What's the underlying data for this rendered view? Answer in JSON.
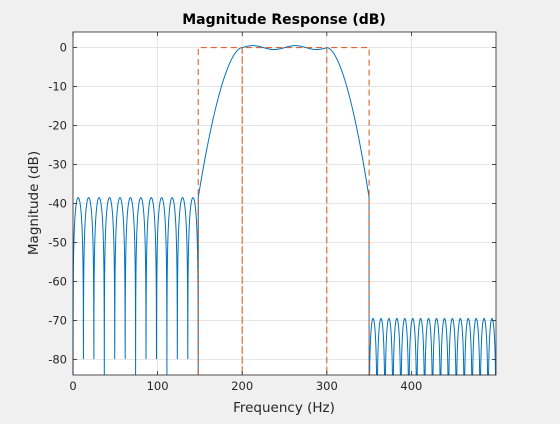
{
  "chart_data": {
    "type": "line",
    "title": "Magnitude Response (dB)",
    "xlabel": "Frequency (Hz)",
    "ylabel": "Magnitude (dB)",
    "xlim": [
      0,
      500
    ],
    "ylim": [
      -84,
      4
    ],
    "grid": true,
    "x_ticks": [
      0,
      100,
      200,
      300,
      400
    ],
    "x_tick_labels": [
      "0",
      "100",
      "200",
      "300",
      "400"
    ],
    "y_ticks": [
      0,
      -10,
      -20,
      -30,
      -40,
      -50,
      -60,
      -70,
      -80
    ],
    "y_tick_labels": [
      "0",
      "-10",
      "-20",
      "-30",
      "-40",
      "-50",
      "-60",
      "-70",
      "-80"
    ],
    "series": [
      {
        "color": "#0072bd",
        "style": "solid",
        "passband": [
          200,
          300
        ],
        "transition_bands": [
          [
            148,
            200
          ],
          [
            300,
            350
          ]
        ],
        "lower_stopband": {
          "range": [
            0,
            148
          ],
          "peak_level": -38.5,
          "lobes": 12
        },
        "upper_stopband": {
          "range": [
            350,
            500
          ],
          "peak_level": -69.5,
          "lobes": 16
        }
      },
      {
        "color": "#d95319",
        "style": "dashed",
        "x": [
          148,
          148,
          200,
          200,
          200,
          300,
          300,
          300,
          350,
          350
        ],
        "y": [
          -84,
          0,
          0,
          -84,
          0,
          0,
          -84,
          0,
          0,
          -84
        ]
      }
    ]
  }
}
